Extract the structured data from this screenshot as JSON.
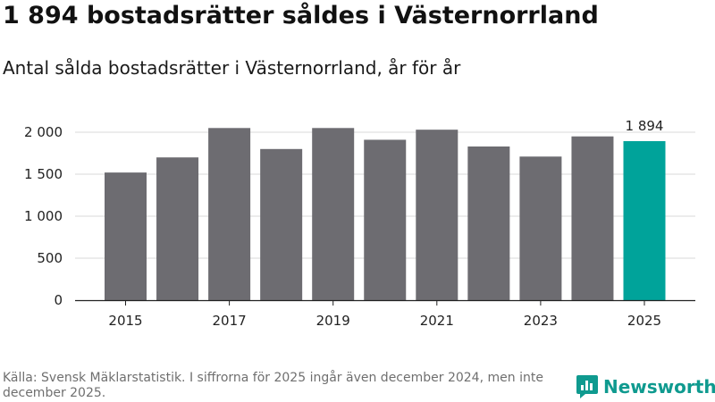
{
  "header": {
    "title": "1 894 bostadsrätter såldes i Västernorrland",
    "subtitle": "Antal sålda bostadsrätter i Västernorrland, år för år"
  },
  "chart_data": {
    "type": "bar",
    "title": "1 894 bostadsrätter såldes i Västernorrland",
    "subtitle": "Antal sålda bostadsrätter i Västernorrland, år för år",
    "xlabel": "",
    "ylabel": "",
    "categories": [
      "2015",
      "2016",
      "2017",
      "2018",
      "2019",
      "2020",
      "2021",
      "2022",
      "2023",
      "2024",
      "2025"
    ],
    "values": [
      1520,
      1700,
      2050,
      1800,
      2050,
      1910,
      2030,
      1830,
      1710,
      1950,
      1894
    ],
    "x_tick_labels": [
      "2015",
      "2017",
      "2019",
      "2021",
      "2023",
      "2025"
    ],
    "y_ticks": [
      0,
      500,
      1000,
      1500,
      2000
    ],
    "y_tick_labels": [
      "0",
      "500",
      "1 000",
      "1 500",
      "2 000"
    ],
    "ylim": [
      0,
      2000
    ],
    "grid": true,
    "highlight_index": 10,
    "annotation": {
      "category": "2025",
      "text": "1 894"
    },
    "colors": {
      "bar": "#6d6c71",
      "highlight": "#00a39a",
      "grid": "#d9d9d9",
      "axis": "#222222"
    }
  },
  "footer": {
    "source": "Källa: Svensk Mäklarstatistik. I siffrorna för 2025 ingår även december 2024, men inte december 2025.",
    "brand_name": "Newsworthy",
    "brand_icon": "newsworthy-logo-icon",
    "brand_color": "#0f9a8f"
  }
}
